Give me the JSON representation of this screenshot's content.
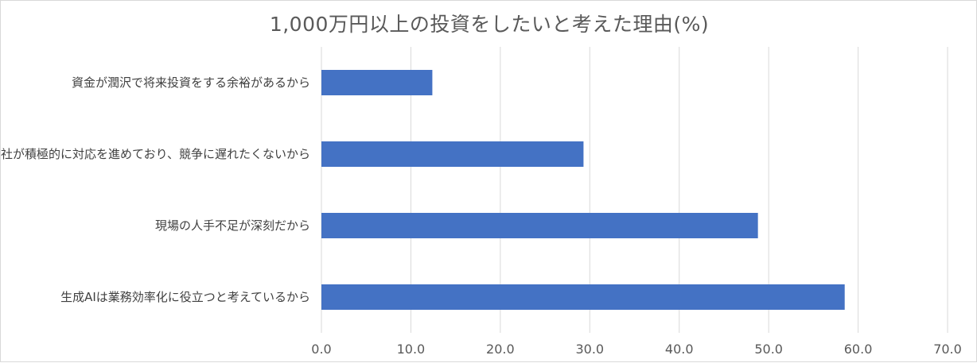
{
  "chart_data": {
    "type": "bar",
    "orientation": "horizontal",
    "title": "1,000万円以上の投資をしたいと考えた理由(%)",
    "categories": [
      "資金が潤沢で将来投資をする余裕があるから",
      "他社が積極的に対応を進めており、競争に遅れたくないから",
      "現場の人手不足が深刻だから",
      "生成AIは業務効率化に役立つと考えているから"
    ],
    "values": [
      12.4,
      29.3,
      48.8,
      58.5
    ],
    "xlim": [
      0,
      70
    ],
    "xticks": [
      "0.0",
      "10.0",
      "20.0",
      "30.0",
      "40.0",
      "50.0",
      "60.0",
      "70.0"
    ],
    "grid": "vertical",
    "bar_color": "#4472c4",
    "xlabel": "",
    "ylabel": ""
  }
}
